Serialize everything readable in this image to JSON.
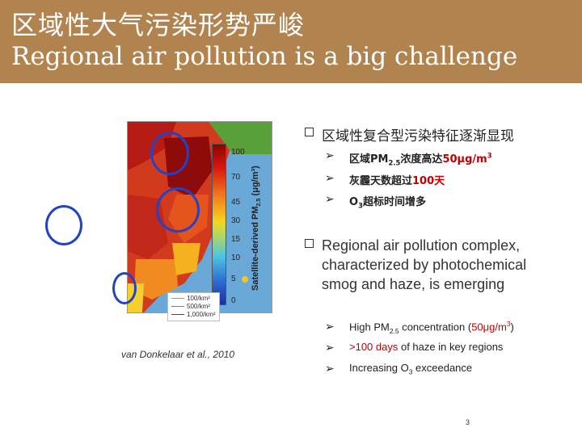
{
  "header": {
    "title_zh": "区域性大气污染形势严峻",
    "title_en": "Regional air pollution is a big challenge"
  },
  "figure": {
    "colorbar_ticks": [
      "100",
      "70",
      "45",
      "30",
      "15",
      "10",
      "5",
      "0"
    ],
    "colorbar_label_main": "Satellite-derived PM",
    "colorbar_label_sub": "2.5",
    "colorbar_label_unit": "(μg/m³)",
    "legend": [
      "100/km²",
      "500/km²",
      "1,000/km²"
    ],
    "citation": "van Donkelaar et al., 2010"
  },
  "zh_section": {
    "heading": "区域性复合型污染特征逐渐显现",
    "items": [
      {
        "pre": "区域PM",
        "sub": "2.5",
        "mid": "浓度高达",
        "hl": "50μg/m",
        "sup": "3"
      },
      {
        "pre": "灰霾天数超过",
        "hl": "100天"
      },
      {
        "pre": "O",
        "sub": "3",
        "post": "超标时间增多"
      }
    ]
  },
  "en_section": {
    "heading": "Regional air pollution complex, characterized by photochemical smog and haze, is emerging",
    "items": [
      {
        "pre": "High PM",
        "sub": "2.5",
        "mid": " concentration (",
        "hl": "50μg/m",
        "sup": "3",
        "post": ")"
      },
      {
        "hl": ">100 days",
        "post": " of haze in key regions"
      },
      {
        "pre": "Increasing O",
        "sub": "3",
        "post": " exceedance"
      }
    ]
  },
  "page_number": "3",
  "colors": {
    "header_bg": "#b1834f",
    "accent_red": "#c00000",
    "circle_blue": "#2342c4"
  }
}
